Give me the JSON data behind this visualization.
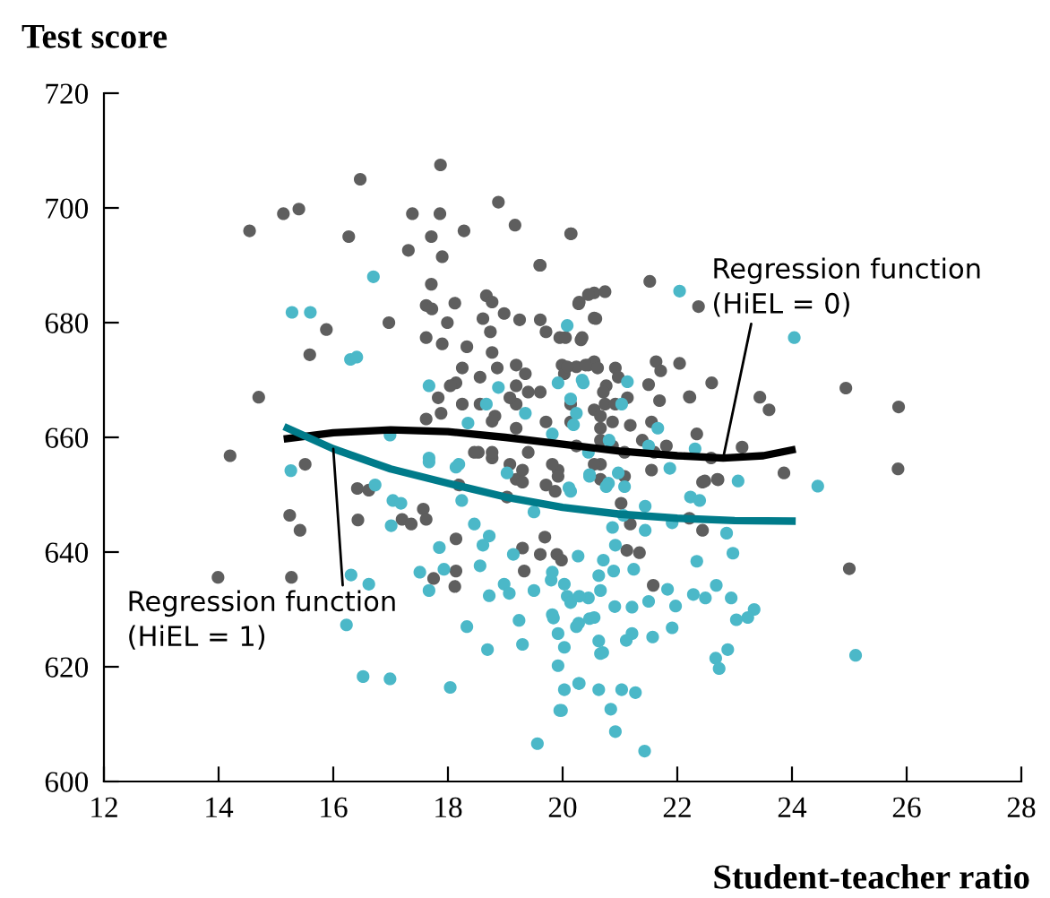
{
  "chart_data": {
    "type": "scatter",
    "xlabel": "Student-teacher ratio",
    "ylabel": "Test score",
    "xlim": [
      12,
      28
    ],
    "ylim": [
      600,
      720
    ],
    "xticks": [
      12,
      14,
      16,
      18,
      20,
      22,
      24,
      26,
      28
    ],
    "yticks": [
      600,
      620,
      640,
      660,
      680,
      700,
      720
    ],
    "grid": false,
    "legend": false,
    "series": [
      {
        "marker": "circle",
        "color": "#5e5e5e",
        "x": [
          17.87,
          16.47,
          15.13,
          15.4,
          14.54,
          17.38,
          17.86,
          18.88,
          19.17,
          20.14,
          16.27,
          17.71,
          18.28,
          17.31,
          17.9,
          19.6,
          17.71,
          15.88,
          15.59,
          16.97,
          14.7,
          14.2,
          15.51,
          20.15,
          21.52,
          22.37,
          24.94,
          25.86,
          25.85,
          22.04,
          22.6,
          23.44,
          23.6,
          22.22,
          22.34,
          23.13,
          23.86,
          22.59,
          25.0,
          22.71,
          22.48,
          22.44,
          21.58,
          21.12,
          21.34,
          21.02,
          21.18,
          22.21,
          19.9,
          15.24,
          15.42,
          13.99,
          15.27,
          16.42,
          16.62,
          16.43,
          17.2,
          17.36,
          17.57,
          17.62,
          17.75,
          18.12,
          18.14,
          18.53,
          18.77,
          18.14,
          19.03,
          19.33,
          19.69,
          19.98,
          19.3,
          19.61,
          19.19,
          19.3,
          19.87,
          19.92,
          18.19,
          17.62,
          17.72,
          18.12,
          17.99,
          17.62,
          17.9,
          18.33,
          18.67,
          18.77,
          18.61,
          18.74,
          18.98,
          19.25,
          19.61,
          19.71,
          20.28,
          20.55,
          20.74,
          20.55,
          20.32,
          19.95,
          19.99,
          20.24,
          20.45,
          19.19,
          19.35,
          19.19,
          19.4,
          19.19,
          18.77,
          18.86,
          18.56,
          18.25,
          18.14,
          17.83,
          18.04,
          18.25,
          18.56,
          18.82,
          19.08,
          19.61,
          20.03,
          20.55,
          20.76,
          20.14,
          20.55,
          20.74,
          17.62,
          17.88,
          18.77,
          19.19,
          19.71,
          20.14,
          20.66,
          18.46,
          18.77,
          19.08,
          19.4,
          19.82,
          20.24,
          20.66,
          19.3,
          19.71,
          19.92,
          20.66,
          19.61,
          20.29,
          20.45,
          20.58,
          20.05,
          20.34,
          20.08,
          20.4,
          20.61,
          20.92,
          20.97,
          21.63,
          21.71,
          21.5,
          21.69,
          22.21,
          20.71,
          20.92,
          21.13,
          20.66,
          20.87,
          21.18,
          21.55,
          20.66,
          20.87,
          21.08,
          21.39,
          21.6,
          21.81,
          20.55,
          21.08,
          21.55,
          22.44,
          22.7
        ],
        "values": [
          707.5,
          705,
          699,
          699.8,
          696,
          699,
          699,
          701,
          697,
          695.5,
          695,
          695,
          696,
          692.6,
          691.5,
          690,
          686.7,
          678.8,
          674.4,
          680,
          667,
          656.8,
          655.3,
          695.5,
          687.2,
          682.8,
          668.6,
          665.3,
          654.5,
          672.9,
          669.5,
          667,
          664.8,
          667,
          660.6,
          658.3,
          653.8,
          656.4,
          637.1,
          652.6,
          652.4,
          643.8,
          634.2,
          640.3,
          639.9,
          648.5,
          644.9,
          645.9,
          639.6,
          646.4,
          643.8,
          635.6,
          635.6,
          651.1,
          650.8,
          645.6,
          645.7,
          644.9,
          647.5,
          645.7,
          635.4,
          634,
          636.7,
          657.4,
          656.4,
          642.3,
          649.6,
          636.7,
          642.6,
          638.6,
          640.7,
          639.6,
          652.7,
          654.3,
          650.6,
          654.3,
          651.7,
          683,
          682.4,
          683.4,
          680,
          677.4,
          676.3,
          675.8,
          684.7,
          683.6,
          680.7,
          678.4,
          681.6,
          680.5,
          680.5,
          678.4,
          683.3,
          685.2,
          685.4,
          680.8,
          677,
          677.4,
          672.6,
          672.3,
          672.6,
          672.6,
          671.1,
          669,
          667.9,
          665.8,
          674.8,
          672.1,
          670.5,
          672.1,
          669.5,
          666.9,
          669,
          665.8,
          665.8,
          663.7,
          666.9,
          667.9,
          671.1,
          673.2,
          669,
          665.8,
          664.8,
          665.8,
          663.2,
          664.2,
          662.8,
          661.6,
          662.7,
          662.7,
          661.6,
          657.4,
          657.4,
          655.3,
          657.4,
          655.3,
          658.5,
          655.3,
          652.2,
          651.7,
          653.2,
          652.7,
          690,
          683.6,
          684.9,
          680.7,
          677.4,
          677.4,
          672.3,
          672.6,
          672.1,
          672.1,
          670.5,
          673.2,
          671.6,
          669.2,
          666.4,
          667.1,
          667.9,
          665.8,
          666.9,
          663.7,
          662.7,
          662.1,
          662.7,
          659.5,
          658.5,
          657.4,
          659.5,
          657.4,
          658.5,
          655.3,
          653.2,
          654.3,
          652.2,
          652.7
        ]
      },
      {
        "marker": "circle",
        "color": "#4bb8c8",
        "x": [
          16.7,
          15.28,
          15.6,
          16.3,
          16.41,
          20.08,
          15.26,
          22.04,
          24.04,
          23.06,
          24.45,
          25.11,
          22.86,
          22.97,
          22.34,
          22.68,
          22.94,
          23.34,
          23.23,
          23.03,
          22.88,
          22.67,
          22.73,
          22.28,
          22.49,
          21.91,
          21.97,
          21.83,
          21.57,
          21.5,
          21.21,
          21.21,
          21.11,
          20.91,
          20.63,
          20.7,
          20.28,
          20.47,
          19.84,
          19.92,
          19.92,
          20.03,
          20.28,
          19.98,
          20.63,
          21.03,
          21.27,
          20.84,
          20.92,
          21.43,
          20.08,
          20.14,
          20.45,
          20.89,
          20.63,
          20.71,
          20.27,
          19.8,
          21.24,
          20.92,
          20.87,
          21.06,
          20.8,
          20.47,
          21.44,
          21.44,
          22.23,
          22.39,
          21.91,
          22.31,
          16.31,
          16.62,
          16.23,
          16.52,
          16.99,
          16.73,
          17.04,
          17.01,
          17.18,
          17.51,
          17.67,
          17.85,
          17.93,
          18.24,
          18.33,
          18.69,
          18.04,
          18.46,
          18.56,
          18.61,
          18.72,
          19.14,
          18.98,
          19.07,
          19.24,
          19.3,
          18.72,
          19.5,
          19.56,
          19.95,
          20.29,
          20.03,
          19.82,
          20.24,
          20.55,
          20.66,
          20.03,
          20.29,
          20.66,
          19.82,
          19.5,
          20.14,
          18.19,
          17.67,
          20.36,
          21.13,
          20.24,
          21.03,
          20.81,
          21.5,
          21.66,
          21.87,
          20.47,
          20.97,
          20.76,
          21.08,
          17.67,
          18.67,
          18.88,
          19.35,
          19.92,
          20.34,
          20.14,
          18.35,
          19.82,
          20.19,
          20.45,
          16.99,
          17.67,
          18.14,
          19.03,
          20.11
        ],
        "values": [
          688,
          681.8,
          681.8,
          673.6,
          674,
          679.5,
          654.2,
          685.5,
          677.4,
          652.4,
          651.5,
          622,
          643.3,
          639.8,
          638.4,
          634.2,
          632,
          630,
          628.6,
          628.2,
          623,
          621.5,
          619.7,
          632.6,
          632,
          626.8,
          630.6,
          633.5,
          625.2,
          631.4,
          630.4,
          625.8,
          624.6,
          630.5,
          624.5,
          622.5,
          627.6,
          628.4,
          628.5,
          625.8,
          620.2,
          616,
          617.1,
          612.4,
          616,
          616,
          615.5,
          612.6,
          608.7,
          605.3,
          632.3,
          631.2,
          632,
          636.7,
          635.9,
          638.6,
          639.3,
          635.1,
          637,
          641.2,
          644.3,
          646.4,
          652,
          653.5,
          643.8,
          648,
          649.6,
          649,
          645.1,
          658,
          636,
          634.4,
          627.3,
          618.3,
          617.9,
          651.7,
          649,
          644.6,
          648.5,
          636.5,
          633.3,
          640.8,
          637,
          649,
          627,
          623,
          616.4,
          644.9,
          637.6,
          641.2,
          642.8,
          639.6,
          634.4,
          632.8,
          628.1,
          623.9,
          632.4,
          633.3,
          606.6,
          612.4,
          617.1,
          623.4,
          629.1,
          627,
          628.6,
          622.3,
          634.4,
          632.3,
          633.3,
          636.5,
          647,
          650.6,
          655.3,
          656.4,
          669.5,
          669.7,
          664.2,
          665.8,
          659.5,
          658.5,
          661.6,
          654.6,
          653.2,
          653.8,
          651.4,
          651.4,
          669,
          665.8,
          668.7,
          664.2,
          669.5,
          670,
          666.7,
          662.5,
          660.6,
          662.2,
          657.4,
          660.4,
          655.7,
          654.8,
          653.8,
          651.2
        ]
      },
      {
        "type": "line",
        "marker": "none",
        "color": "#000000",
        "x": [
          15.2,
          16,
          17,
          18,
          19,
          20,
          21,
          22,
          22.8,
          23.5,
          24
        ],
        "values": [
          659.8,
          660.8,
          661.3,
          661,
          660,
          658.8,
          657.6,
          656.8,
          656.4,
          656.8,
          657.8
        ]
      },
      {
        "type": "line",
        "marker": "none",
        "color": "#007b8a",
        "x": [
          15.2,
          16,
          17,
          18,
          19,
          20,
          21,
          22,
          23,
          24
        ],
        "values": [
          661.6,
          658,
          654.5,
          652,
          649.6,
          647.8,
          646.6,
          645.9,
          645.5,
          645.4
        ]
      }
    ],
    "annotations": [
      {
        "text": "Regression function\n(HiEL = 0)",
        "x": 22.8,
        "y": 656.4
      },
      {
        "text": "Regression function\n(HiEL = 1)",
        "x": 16,
        "y": 658
      }
    ]
  }
}
